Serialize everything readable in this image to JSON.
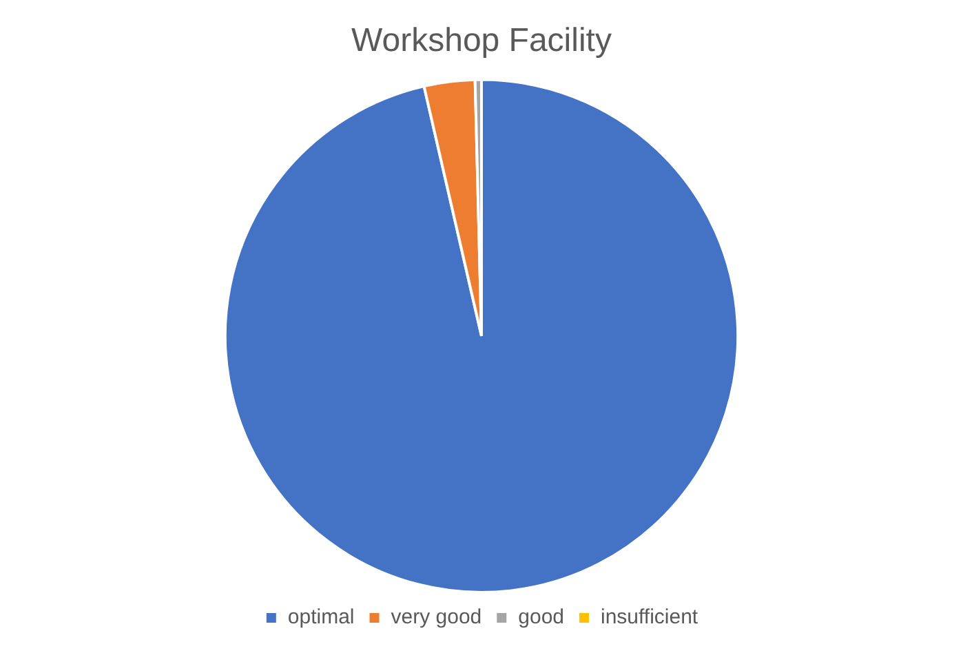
{
  "chart_data": {
    "type": "pie",
    "title": "Workshop Facility",
    "categories": [
      "optimal",
      "very good",
      "good",
      "insufficient"
    ],
    "values": [
      96.4,
      3.2,
      0.4,
      0
    ],
    "colors": [
      "#4472c4",
      "#ed7d31",
      "#a5a5a5",
      "#ffc000"
    ],
    "legend": "bottom"
  }
}
